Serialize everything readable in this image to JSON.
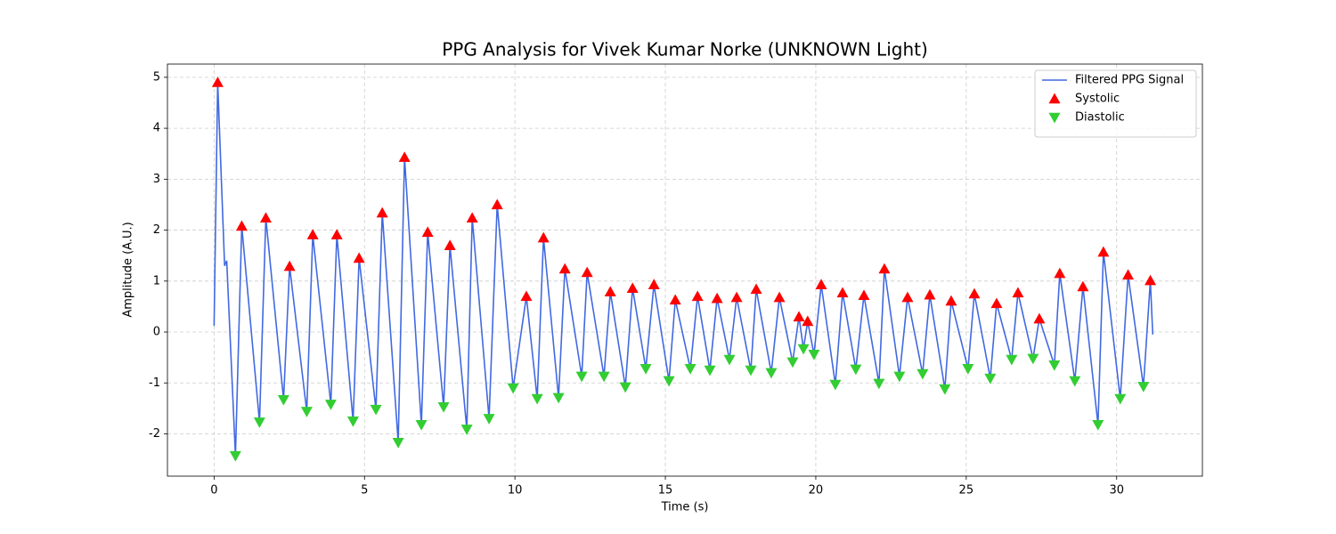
{
  "chart_data": {
    "type": "line",
    "title": "PPG Analysis for Vivek Kumar Norke (UNKNOWN Light)",
    "x_label": "Time (s)",
    "y_label": "Amplitude (A.U.)",
    "xlim": [
      -1.55,
      32.85
    ],
    "ylim": [
      -2.83,
      5.26
    ],
    "xticks": [
      0,
      5,
      10,
      15,
      20,
      25,
      30
    ],
    "yticks": [
      -2,
      -1,
      0,
      1,
      2,
      3,
      4,
      5
    ],
    "grid": true,
    "legend": "upper right",
    "series": [
      {
        "name": "Filtered PPG Signal",
        "type": "line",
        "color": "#4169e1",
        "x": [
          0,
          0.12,
          0.35,
          0.42,
          0.71,
          0.92,
          1.51,
          1.72,
          2.31,
          2.51,
          3.08,
          3.28,
          3.88,
          4.08,
          4.62,
          4.82,
          5.38,
          5.59,
          6.12,
          6.33,
          6.89,
          7.1,
          7.63,
          7.84,
          8.4,
          8.58,
          9.14,
          9.41,
          9.94,
          10.38,
          10.74,
          10.95,
          11.45,
          11.66,
          12.22,
          12.4,
          12.96,
          13.17,
          13.67,
          13.91,
          14.35,
          14.62,
          15.12,
          15.33,
          15.83,
          16.07,
          16.48,
          16.72,
          17.13,
          17.37,
          17.84,
          18.02,
          18.52,
          18.79,
          19.23,
          19.44,
          19.59,
          19.73,
          19.94,
          20.18,
          20.65,
          20.89,
          21.33,
          21.6,
          22.1,
          22.28,
          22.78,
          23.05,
          23.55,
          23.79,
          24.29,
          24.5,
          25.06,
          25.27,
          25.8,
          26.01,
          26.51,
          26.72,
          27.22,
          27.43,
          27.93,
          28.11,
          28.61,
          28.88,
          29.38,
          29.56,
          30.12,
          30.38,
          30.89,
          31.12,
          31.2
        ],
        "values": [
          0.12,
          4.9,
          1.3,
          1.4,
          -2.43,
          2.08,
          -1.77,
          2.24,
          -1.33,
          1.29,
          -1.56,
          1.91,
          -1.42,
          1.91,
          -1.75,
          1.45,
          -1.52,
          2.34,
          -2.17,
          3.43,
          -1.82,
          1.96,
          -1.47,
          1.7,
          -1.91,
          2.24,
          -1.7,
          2.5,
          -1.1,
          0.7,
          -1.31,
          1.85,
          -1.29,
          1.24,
          -0.87,
          1.17,
          -0.87,
          0.79,
          -1.08,
          0.86,
          -0.72,
          0.93,
          -0.96,
          0.63,
          -0.72,
          0.7,
          -0.75,
          0.66,
          -0.54,
          0.68,
          -0.75,
          0.84,
          -0.8,
          0.68,
          -0.59,
          0.3,
          -0.33,
          0.21,
          -0.44,
          0.93,
          -1.03,
          0.77,
          -0.73,
          0.72,
          -1.01,
          1.24,
          -0.87,
          0.68,
          -0.82,
          0.73,
          -1.12,
          0.61,
          -0.72,
          0.75,
          -0.91,
          0.56,
          -0.54,
          0.77,
          -0.52,
          0.26,
          -0.65,
          1.15,
          -0.96,
          0.89,
          -1.82,
          1.57,
          -1.31,
          1.12,
          -1.07,
          1.01,
          -0.05
        ]
      },
      {
        "name": "Systolic",
        "type": "scatter",
        "marker": "^",
        "color": "#ff0000",
        "x": [
          0.12,
          0.92,
          1.72,
          2.51,
          3.28,
          4.08,
          4.82,
          5.59,
          6.33,
          7.1,
          7.84,
          8.58,
          9.41,
          10.38,
          10.95,
          11.66,
          12.4,
          13.17,
          13.91,
          14.62,
          15.33,
          16.07,
          16.72,
          17.37,
          18.02,
          18.79,
          19.44,
          19.73,
          20.18,
          20.89,
          21.6,
          22.28,
          23.05,
          23.79,
          24.5,
          25.27,
          26.01,
          26.72,
          27.43,
          28.11,
          28.88,
          29.56,
          30.38,
          31.12
        ],
        "values": [
          4.9,
          2.08,
          2.24,
          1.29,
          1.91,
          1.91,
          1.45,
          2.34,
          3.43,
          1.96,
          1.7,
          2.24,
          2.5,
          0.7,
          1.85,
          1.24,
          1.17,
          0.79,
          0.86,
          0.93,
          0.63,
          0.7,
          0.66,
          0.68,
          0.84,
          0.68,
          0.3,
          0.21,
          0.93,
          0.77,
          0.72,
          1.24,
          0.68,
          0.73,
          0.61,
          0.75,
          0.56,
          0.77,
          0.26,
          1.15,
          0.89,
          1.57,
          1.12,
          1.01
        ]
      },
      {
        "name": "Diastolic",
        "type": "scatter",
        "marker": "v",
        "color": "#32cd32",
        "x": [
          0.71,
          1.51,
          2.31,
          3.08,
          3.88,
          4.62,
          5.38,
          6.12,
          6.89,
          7.63,
          8.4,
          9.14,
          9.94,
          10.74,
          11.45,
          12.22,
          12.96,
          13.67,
          14.35,
          15.12,
          15.83,
          16.48,
          17.13,
          17.84,
          18.52,
          19.23,
          19.59,
          19.94,
          20.65,
          21.33,
          22.1,
          22.78,
          23.55,
          24.29,
          25.06,
          25.8,
          26.51,
          27.22,
          27.93,
          28.61,
          29.38,
          30.12,
          30.89
        ],
        "values": [
          -2.43,
          -1.77,
          -1.33,
          -1.56,
          -1.42,
          -1.75,
          -1.52,
          -2.17,
          -1.82,
          -1.47,
          -1.91,
          -1.7,
          -1.1,
          -1.31,
          -1.29,
          -0.87,
          -0.87,
          -1.08,
          -0.72,
          -0.96,
          -0.72,
          -0.75,
          -0.54,
          -0.75,
          -0.8,
          -0.59,
          -0.33,
          -0.44,
          -1.03,
          -0.73,
          -1.01,
          -0.87,
          -0.82,
          -1.12,
          -0.72,
          -0.91,
          -0.54,
          -0.52,
          -0.65,
          -0.96,
          -1.82,
          -1.31,
          -1.07
        ]
      }
    ]
  }
}
